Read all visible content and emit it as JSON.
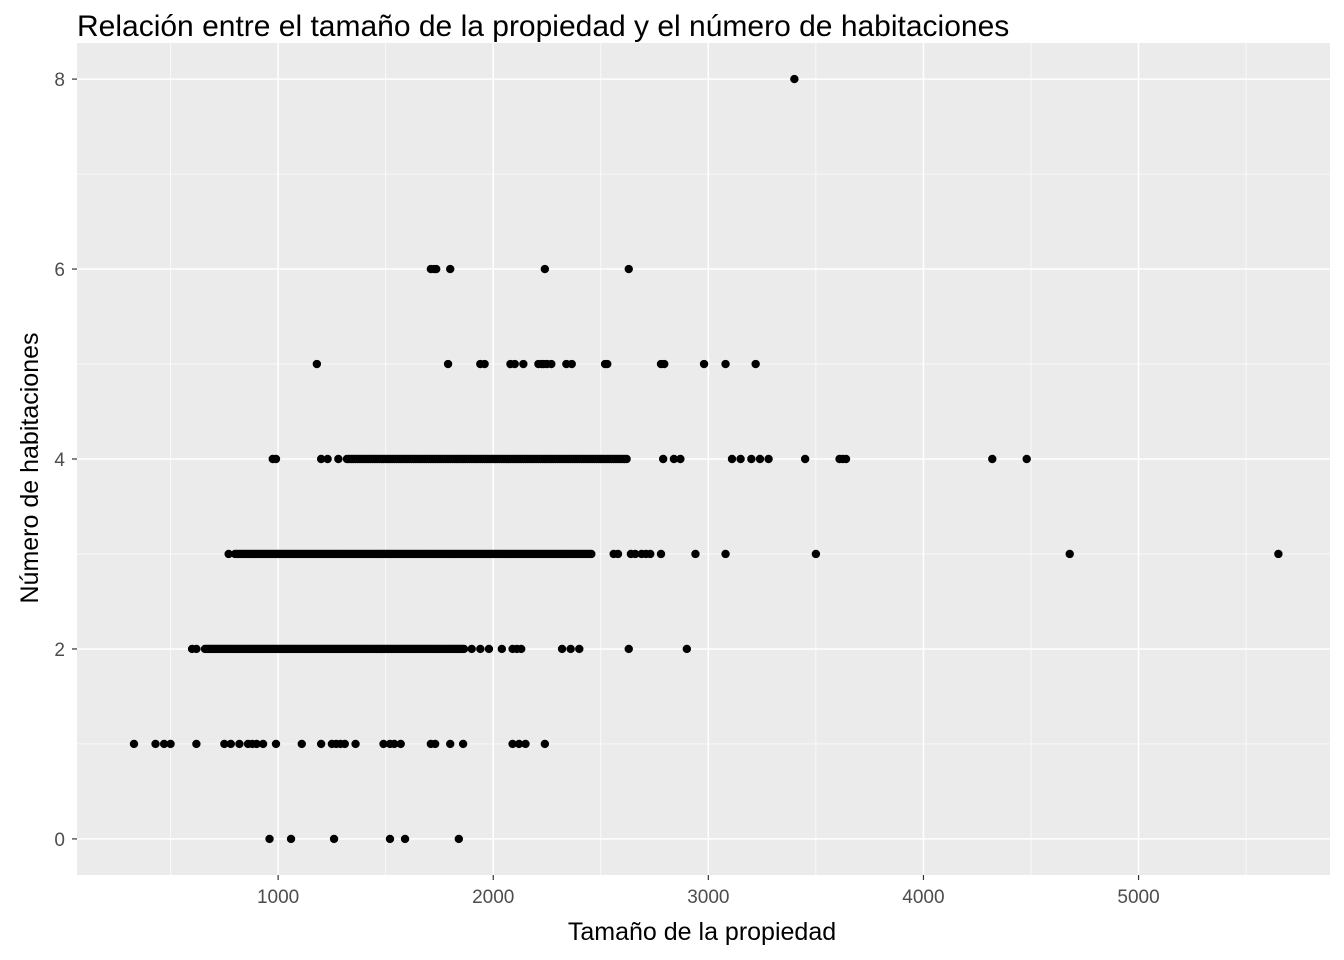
{
  "chart_data": {
    "type": "scatter",
    "title": "Relación entre el tamaño de la propiedad y el número de habitaciones",
    "xlabel": "Tamaño de la propiedad",
    "ylabel": "Número de habitaciones",
    "xlim": [
      65,
      5890
    ],
    "ylim": [
      -0.38,
      8.38
    ],
    "x_ticks": [
      1000,
      2000,
      3000,
      4000,
      5000
    ],
    "x_tick_labels": [
      "1000",
      "2000",
      "3000",
      "4000",
      "5000"
    ],
    "y_ticks": [
      0,
      2,
      4,
      6,
      8
    ],
    "y_tick_labels": [
      "0",
      "2",
      "4",
      "6",
      "8"
    ],
    "grid": true,
    "legend": "none",
    "colors": {
      "panel": "#ebebeb",
      "grid": "#ffffff",
      "point": "#000000",
      "tick_text": "#4d4d4d",
      "title_text": "#000000"
    },
    "series": [
      {
        "points": [
          [
            3400,
            8
          ],
          [
            1710,
            6
          ],
          [
            1725,
            6
          ],
          [
            1735,
            6
          ],
          [
            1800,
            6
          ],
          [
            2240,
            6
          ],
          [
            2630,
            6
          ],
          [
            1180,
            5
          ],
          [
            1790,
            5
          ],
          [
            1940,
            5
          ],
          [
            1960,
            5
          ],
          [
            2080,
            5
          ],
          [
            2100,
            5
          ],
          [
            2140,
            5
          ],
          [
            2210,
            5
          ],
          [
            2225,
            5
          ],
          [
            2235,
            5
          ],
          [
            2250,
            5
          ],
          [
            2270,
            5
          ],
          [
            2340,
            5
          ],
          [
            2365,
            5
          ],
          [
            2520,
            5
          ],
          [
            2530,
            5
          ],
          [
            2780,
            5
          ],
          [
            2795,
            5
          ],
          [
            2980,
            5
          ],
          [
            3080,
            5
          ],
          [
            3220,
            5
          ],
          [
            975,
            4
          ],
          [
            990,
            4
          ],
          [
            1200,
            4
          ],
          [
            1230,
            4
          ],
          [
            1280,
            4
          ],
          [
            2790,
            4
          ],
          [
            2840,
            4
          ],
          [
            2870,
            4
          ],
          [
            3110,
            4
          ],
          [
            3150,
            4
          ],
          [
            3200,
            4
          ],
          [
            3240,
            4
          ],
          [
            3280,
            4
          ],
          [
            3450,
            4
          ],
          [
            3610,
            4
          ],
          [
            3625,
            4
          ],
          [
            3640,
            4
          ],
          [
            4320,
            4
          ],
          [
            4480,
            4
          ],
          [
            770,
            3
          ],
          [
            2560,
            3
          ],
          [
            2580,
            3
          ],
          [
            2640,
            3
          ],
          [
            2660,
            3
          ],
          [
            2690,
            3
          ],
          [
            2710,
            3
          ],
          [
            2730,
            3
          ],
          [
            2780,
            3
          ],
          [
            2940,
            3
          ],
          [
            3080,
            3
          ],
          [
            3500,
            3
          ],
          [
            4680,
            3
          ],
          [
            5650,
            3
          ],
          [
            600,
            2
          ],
          [
            620,
            2
          ],
          [
            1900,
            2
          ],
          [
            1940,
            2
          ],
          [
            1980,
            2
          ],
          [
            2040,
            2
          ],
          [
            2090,
            2
          ],
          [
            2110,
            2
          ],
          [
            2130,
            2
          ],
          [
            2320,
            2
          ],
          [
            2360,
            2
          ],
          [
            2400,
            2
          ],
          [
            2630,
            2
          ],
          [
            2900,
            2
          ],
          [
            330,
            1
          ],
          [
            430,
            1
          ],
          [
            470,
            1
          ],
          [
            500,
            1
          ],
          [
            620,
            1
          ],
          [
            750,
            1
          ],
          [
            780,
            1
          ],
          [
            820,
            1
          ],
          [
            860,
            1
          ],
          [
            880,
            1
          ],
          [
            900,
            1
          ],
          [
            930,
            1
          ],
          [
            990,
            1
          ],
          [
            1110,
            1
          ],
          [
            1200,
            1
          ],
          [
            1250,
            1
          ],
          [
            1270,
            1
          ],
          [
            1290,
            1
          ],
          [
            1310,
            1
          ],
          [
            1360,
            1
          ],
          [
            1490,
            1
          ],
          [
            1520,
            1
          ],
          [
            1540,
            1
          ],
          [
            1570,
            1
          ],
          [
            1710,
            1
          ],
          [
            1730,
            1
          ],
          [
            1800,
            1
          ],
          [
            1860,
            1
          ],
          [
            2090,
            1
          ],
          [
            2120,
            1
          ],
          [
            2150,
            1
          ],
          [
            2240,
            1
          ],
          [
            960,
            0
          ],
          [
            1060,
            0
          ],
          [
            1260,
            0
          ],
          [
            1520,
            0
          ],
          [
            1590,
            0
          ],
          [
            1840,
            0
          ]
        ],
        "dense_rows": [
          {
            "y": 4,
            "x_from": 1320,
            "x_to": 2620,
            "step": 10
          },
          {
            "y": 3,
            "x_from": 800,
            "x_to": 2460,
            "step": 8
          },
          {
            "y": 2,
            "x_from": 660,
            "x_to": 1870,
            "step": 7
          }
        ]
      }
    ]
  }
}
